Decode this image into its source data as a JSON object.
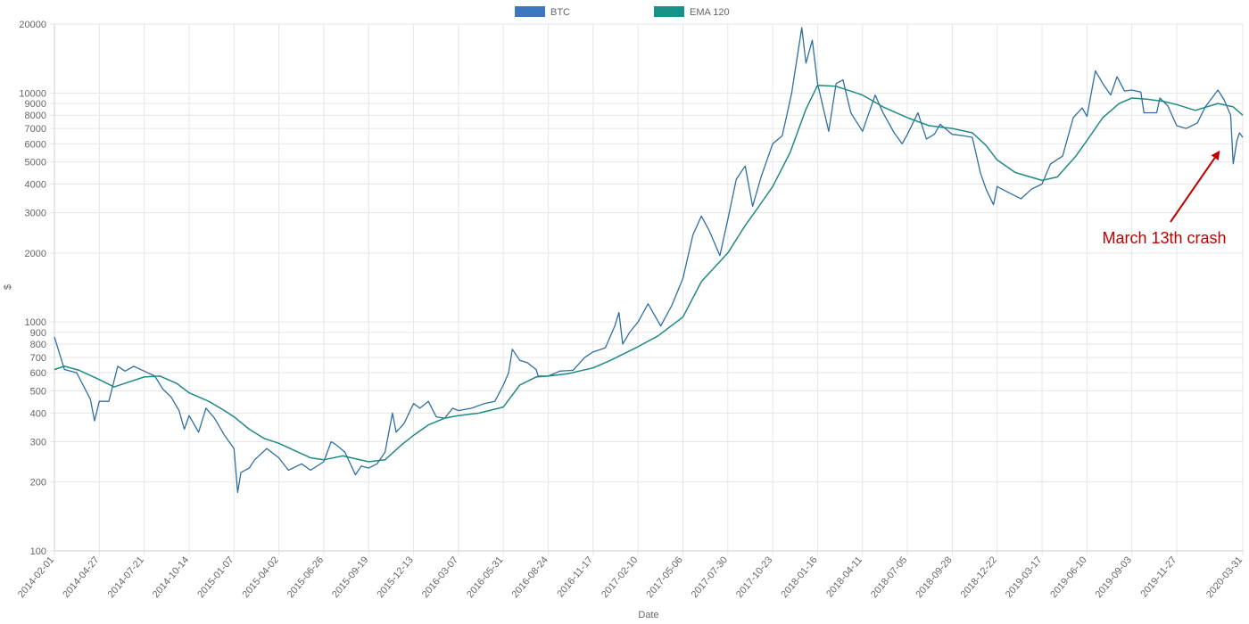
{
  "chart_data": {
    "type": "line",
    "title": "",
    "xlabel": "Date",
    "ylabel": "$",
    "y_scale": "log",
    "ylim": [
      100,
      20000
    ],
    "grid": true,
    "legend_position": "top-center",
    "colors": {
      "btc": "#2f6fa3",
      "ema": "#1f8a82",
      "legend_btc": "#3a78c2",
      "legend_ema": "#179486",
      "grid": "#e6e6e6",
      "annotation": "#c00000"
    },
    "y_ticks": [
      100,
      200,
      300,
      400,
      500,
      600,
      700,
      800,
      900,
      1000,
      2000,
      3000,
      4000,
      5000,
      6000,
      7000,
      8000,
      9000,
      10000,
      20000
    ],
    "x_ticks": [
      "2014-02-01",
      "2014-04-27",
      "2014-07-21",
      "2014-10-14",
      "2015-01-07",
      "2015-04-02",
      "2015-06-26",
      "2015-09-19",
      "2015-12-13",
      "2016-03-07",
      "2016-05-31",
      "2016-08-24",
      "2016-11-17",
      "2017-02-10",
      "2017-05-06",
      "2017-07-30",
      "2017-10-23",
      "2018-01-16",
      "2018-04-11",
      "2018-07-05",
      "2018-09-28",
      "2018-12-22",
      "2019-03-17",
      "2019-06-10",
      "2019-09-03",
      "2019-11-27",
      "2020-03-31"
    ],
    "series": [
      {
        "name": "BTC",
        "points": [
          [
            "2014-02-01",
            860
          ],
          [
            "2014-02-20",
            620
          ],
          [
            "2014-03-15",
            600
          ],
          [
            "2014-04-10",
            460
          ],
          [
            "2014-04-18",
            370
          ],
          [
            "2014-04-27",
            450
          ],
          [
            "2014-05-15",
            450
          ],
          [
            "2014-06-01",
            640
          ],
          [
            "2014-06-15",
            610
          ],
          [
            "2014-07-01",
            640
          ],
          [
            "2014-07-21",
            610
          ],
          [
            "2014-08-10",
            580
          ],
          [
            "2014-08-25",
            510
          ],
          [
            "2014-09-10",
            470
          ],
          [
            "2014-09-25",
            410
          ],
          [
            "2014-10-05",
            340
          ],
          [
            "2014-10-14",
            390
          ],
          [
            "2014-11-01",
            330
          ],
          [
            "2014-11-15",
            420
          ],
          [
            "2014-12-01",
            380
          ],
          [
            "2014-12-20",
            320
          ],
          [
            "2015-01-07",
            280
          ],
          [
            "2015-01-14",
            180
          ],
          [
            "2015-01-20",
            220
          ],
          [
            "2015-02-05",
            230
          ],
          [
            "2015-02-15",
            250
          ],
          [
            "2015-03-10",
            280
          ],
          [
            "2015-04-02",
            255
          ],
          [
            "2015-04-20",
            225
          ],
          [
            "2015-05-15",
            240
          ],
          [
            "2015-06-01",
            225
          ],
          [
            "2015-06-26",
            245
          ],
          [
            "2015-07-10",
            300
          ],
          [
            "2015-07-20",
            290
          ],
          [
            "2015-08-05",
            270
          ],
          [
            "2015-08-25",
            215
          ],
          [
            "2015-09-05",
            235
          ],
          [
            "2015-09-19",
            230
          ],
          [
            "2015-10-05",
            240
          ],
          [
            "2015-10-20",
            270
          ],
          [
            "2015-11-03",
            400
          ],
          [
            "2015-11-10",
            330
          ],
          [
            "2015-11-25",
            360
          ],
          [
            "2015-12-13",
            440
          ],
          [
            "2015-12-25",
            420
          ],
          [
            "2016-01-10",
            450
          ],
          [
            "2016-01-25",
            385
          ],
          [
            "2016-02-10",
            380
          ],
          [
            "2016-02-25",
            420
          ],
          [
            "2016-03-07",
            410
          ],
          [
            "2016-04-01",
            420
          ],
          [
            "2016-04-25",
            440
          ],
          [
            "2016-05-15",
            450
          ],
          [
            "2016-05-31",
            530
          ],
          [
            "2016-06-10",
            600
          ],
          [
            "2016-06-17",
            760
          ],
          [
            "2016-07-01",
            680
          ],
          [
            "2016-07-15",
            665
          ],
          [
            "2016-08-01",
            620
          ],
          [
            "2016-08-05",
            580
          ],
          [
            "2016-08-24",
            580
          ],
          [
            "2016-09-15",
            610
          ],
          [
            "2016-10-10",
            615
          ],
          [
            "2016-11-01",
            700
          ],
          [
            "2016-11-17",
            740
          ],
          [
            "2016-12-10",
            770
          ],
          [
            "2016-12-28",
            960
          ],
          [
            "2017-01-05",
            1100
          ],
          [
            "2017-01-12",
            800
          ],
          [
            "2017-01-25",
            900
          ],
          [
            "2017-02-10",
            1000
          ],
          [
            "2017-03-01",
            1200
          ],
          [
            "2017-03-25",
            960
          ],
          [
            "2017-04-15",
            1180
          ],
          [
            "2017-05-06",
            1550
          ],
          [
            "2017-05-25",
            2400
          ],
          [
            "2017-06-10",
            2900
          ],
          [
            "2017-06-25",
            2500
          ],
          [
            "2017-07-15",
            1950
          ],
          [
            "2017-07-30",
            2800
          ],
          [
            "2017-08-15",
            4200
          ],
          [
            "2017-09-01",
            4800
          ],
          [
            "2017-09-15",
            3200
          ],
          [
            "2017-10-01",
            4300
          ],
          [
            "2017-10-23",
            6000
          ],
          [
            "2017-11-10",
            6500
          ],
          [
            "2017-11-28",
            10000
          ],
          [
            "2017-12-17",
            19300
          ],
          [
            "2017-12-25",
            13500
          ],
          [
            "2018-01-06",
            17000
          ],
          [
            "2018-01-16",
            11000
          ],
          [
            "2018-02-06",
            6800
          ],
          [
            "2018-02-20",
            11000
          ],
          [
            "2018-03-05",
            11400
          ],
          [
            "2018-03-20",
            8200
          ],
          [
            "2018-04-11",
            6800
          ],
          [
            "2018-05-05",
            9800
          ],
          [
            "2018-05-20",
            8200
          ],
          [
            "2018-06-10",
            6700
          ],
          [
            "2018-06-25",
            6000
          ],
          [
            "2018-07-05",
            6600
          ],
          [
            "2018-07-25",
            8200
          ],
          [
            "2018-08-10",
            6300
          ],
          [
            "2018-08-25",
            6600
          ],
          [
            "2018-09-05",
            7300
          ],
          [
            "2018-09-28",
            6600
          ],
          [
            "2018-10-20",
            6500
          ],
          [
            "2018-11-05",
            6400
          ],
          [
            "2018-11-20",
            4500
          ],
          [
            "2018-12-01",
            3800
          ],
          [
            "2018-12-15",
            3250
          ],
          [
            "2018-12-22",
            3900
          ],
          [
            "2019-01-15",
            3650
          ],
          [
            "2019-02-05",
            3450
          ],
          [
            "2019-02-25",
            3800
          ],
          [
            "2019-03-17",
            4000
          ],
          [
            "2019-04-02",
            4900
          ],
          [
            "2019-04-25",
            5300
          ],
          [
            "2019-05-15",
            7800
          ],
          [
            "2019-06-01",
            8600
          ],
          [
            "2019-06-10",
            7900
          ],
          [
            "2019-06-26",
            12500
          ],
          [
            "2019-07-10",
            11000
          ],
          [
            "2019-07-25",
            9800
          ],
          [
            "2019-08-06",
            11800
          ],
          [
            "2019-08-20",
            10200
          ],
          [
            "2019-09-03",
            10300
          ],
          [
            "2019-09-20",
            10100
          ],
          [
            "2019-09-26",
            8200
          ],
          [
            "2019-10-20",
            8200
          ],
          [
            "2019-10-26",
            9500
          ],
          [
            "2019-11-10",
            8800
          ],
          [
            "2019-11-27",
            7200
          ],
          [
            "2019-12-15",
            7000
          ],
          [
            "2020-01-05",
            7400
          ],
          [
            "2020-01-20",
            8700
          ],
          [
            "2020-02-13",
            10300
          ],
          [
            "2020-02-25",
            9300
          ],
          [
            "2020-03-08",
            8000
          ],
          [
            "2020-03-13",
            4900
          ],
          [
            "2020-03-20",
            6200
          ],
          [
            "2020-03-25",
            6700
          ],
          [
            "2020-03-31",
            6400
          ]
        ]
      },
      {
        "name": "EMA 120",
        "points": [
          [
            "2014-02-01",
            620
          ],
          [
            "2014-02-20",
            640
          ],
          [
            "2014-03-20",
            615
          ],
          [
            "2014-04-27",
            560
          ],
          [
            "2014-05-25",
            520
          ],
          [
            "2014-06-20",
            545
          ],
          [
            "2014-07-21",
            575
          ],
          [
            "2014-08-20",
            580
          ],
          [
            "2014-09-20",
            540
          ],
          [
            "2014-10-14",
            490
          ],
          [
            "2014-11-20",
            450
          ],
          [
            "2014-12-20",
            410
          ],
          [
            "2015-01-07",
            385
          ],
          [
            "2015-02-05",
            340
          ],
          [
            "2015-03-05",
            310
          ],
          [
            "2015-04-02",
            295
          ],
          [
            "2015-05-01",
            275
          ],
          [
            "2015-06-01",
            255
          ],
          [
            "2015-06-26",
            250
          ],
          [
            "2015-08-01",
            260
          ],
          [
            "2015-09-19",
            245
          ],
          [
            "2015-10-20",
            250
          ],
          [
            "2015-11-20",
            290
          ],
          [
            "2015-12-13",
            320
          ],
          [
            "2016-01-10",
            355
          ],
          [
            "2016-02-10",
            380
          ],
          [
            "2016-03-07",
            390
          ],
          [
            "2016-04-15",
            400
          ],
          [
            "2016-05-31",
            425
          ],
          [
            "2016-07-01",
            530
          ],
          [
            "2016-08-01",
            575
          ],
          [
            "2016-08-24",
            580
          ],
          [
            "2016-10-01",
            595
          ],
          [
            "2016-11-17",
            630
          ],
          [
            "2016-12-20",
            680
          ],
          [
            "2017-02-10",
            780
          ],
          [
            "2017-03-20",
            870
          ],
          [
            "2017-05-06",
            1050
          ],
          [
            "2017-06-10",
            1500
          ],
          [
            "2017-07-30",
            2000
          ],
          [
            "2017-08-30",
            2600
          ],
          [
            "2017-10-01",
            3300
          ],
          [
            "2017-10-23",
            3900
          ],
          [
            "2017-11-25",
            5500
          ],
          [
            "2017-12-25",
            8500
          ],
          [
            "2018-01-16",
            10800
          ],
          [
            "2018-02-20",
            10700
          ],
          [
            "2018-04-11",
            9800
          ],
          [
            "2018-05-20",
            8700
          ],
          [
            "2018-07-05",
            7800
          ],
          [
            "2018-08-15",
            7200
          ],
          [
            "2018-09-28",
            7000
          ],
          [
            "2018-11-05",
            6700
          ],
          [
            "2018-12-01",
            5900
          ],
          [
            "2018-12-22",
            5100
          ],
          [
            "2019-01-25",
            4500
          ],
          [
            "2019-03-17",
            4150
          ],
          [
            "2019-04-15",
            4300
          ],
          [
            "2019-05-20",
            5300
          ],
          [
            "2019-06-10",
            6200
          ],
          [
            "2019-07-10",
            7800
          ],
          [
            "2019-08-10",
            9000
          ],
          [
            "2019-09-03",
            9500
          ],
          [
            "2019-10-01",
            9400
          ],
          [
            "2019-11-01",
            9200
          ],
          [
            "2019-11-27",
            8900
          ],
          [
            "2020-01-01",
            8400
          ],
          [
            "2020-02-13",
            9000
          ],
          [
            "2020-03-13",
            8700
          ],
          [
            "2020-03-31",
            8000
          ]
        ]
      }
    ],
    "annotations": [
      {
        "text": "March 13th crash",
        "target_x": "2020-03-13",
        "target_y": 4900
      }
    ]
  }
}
